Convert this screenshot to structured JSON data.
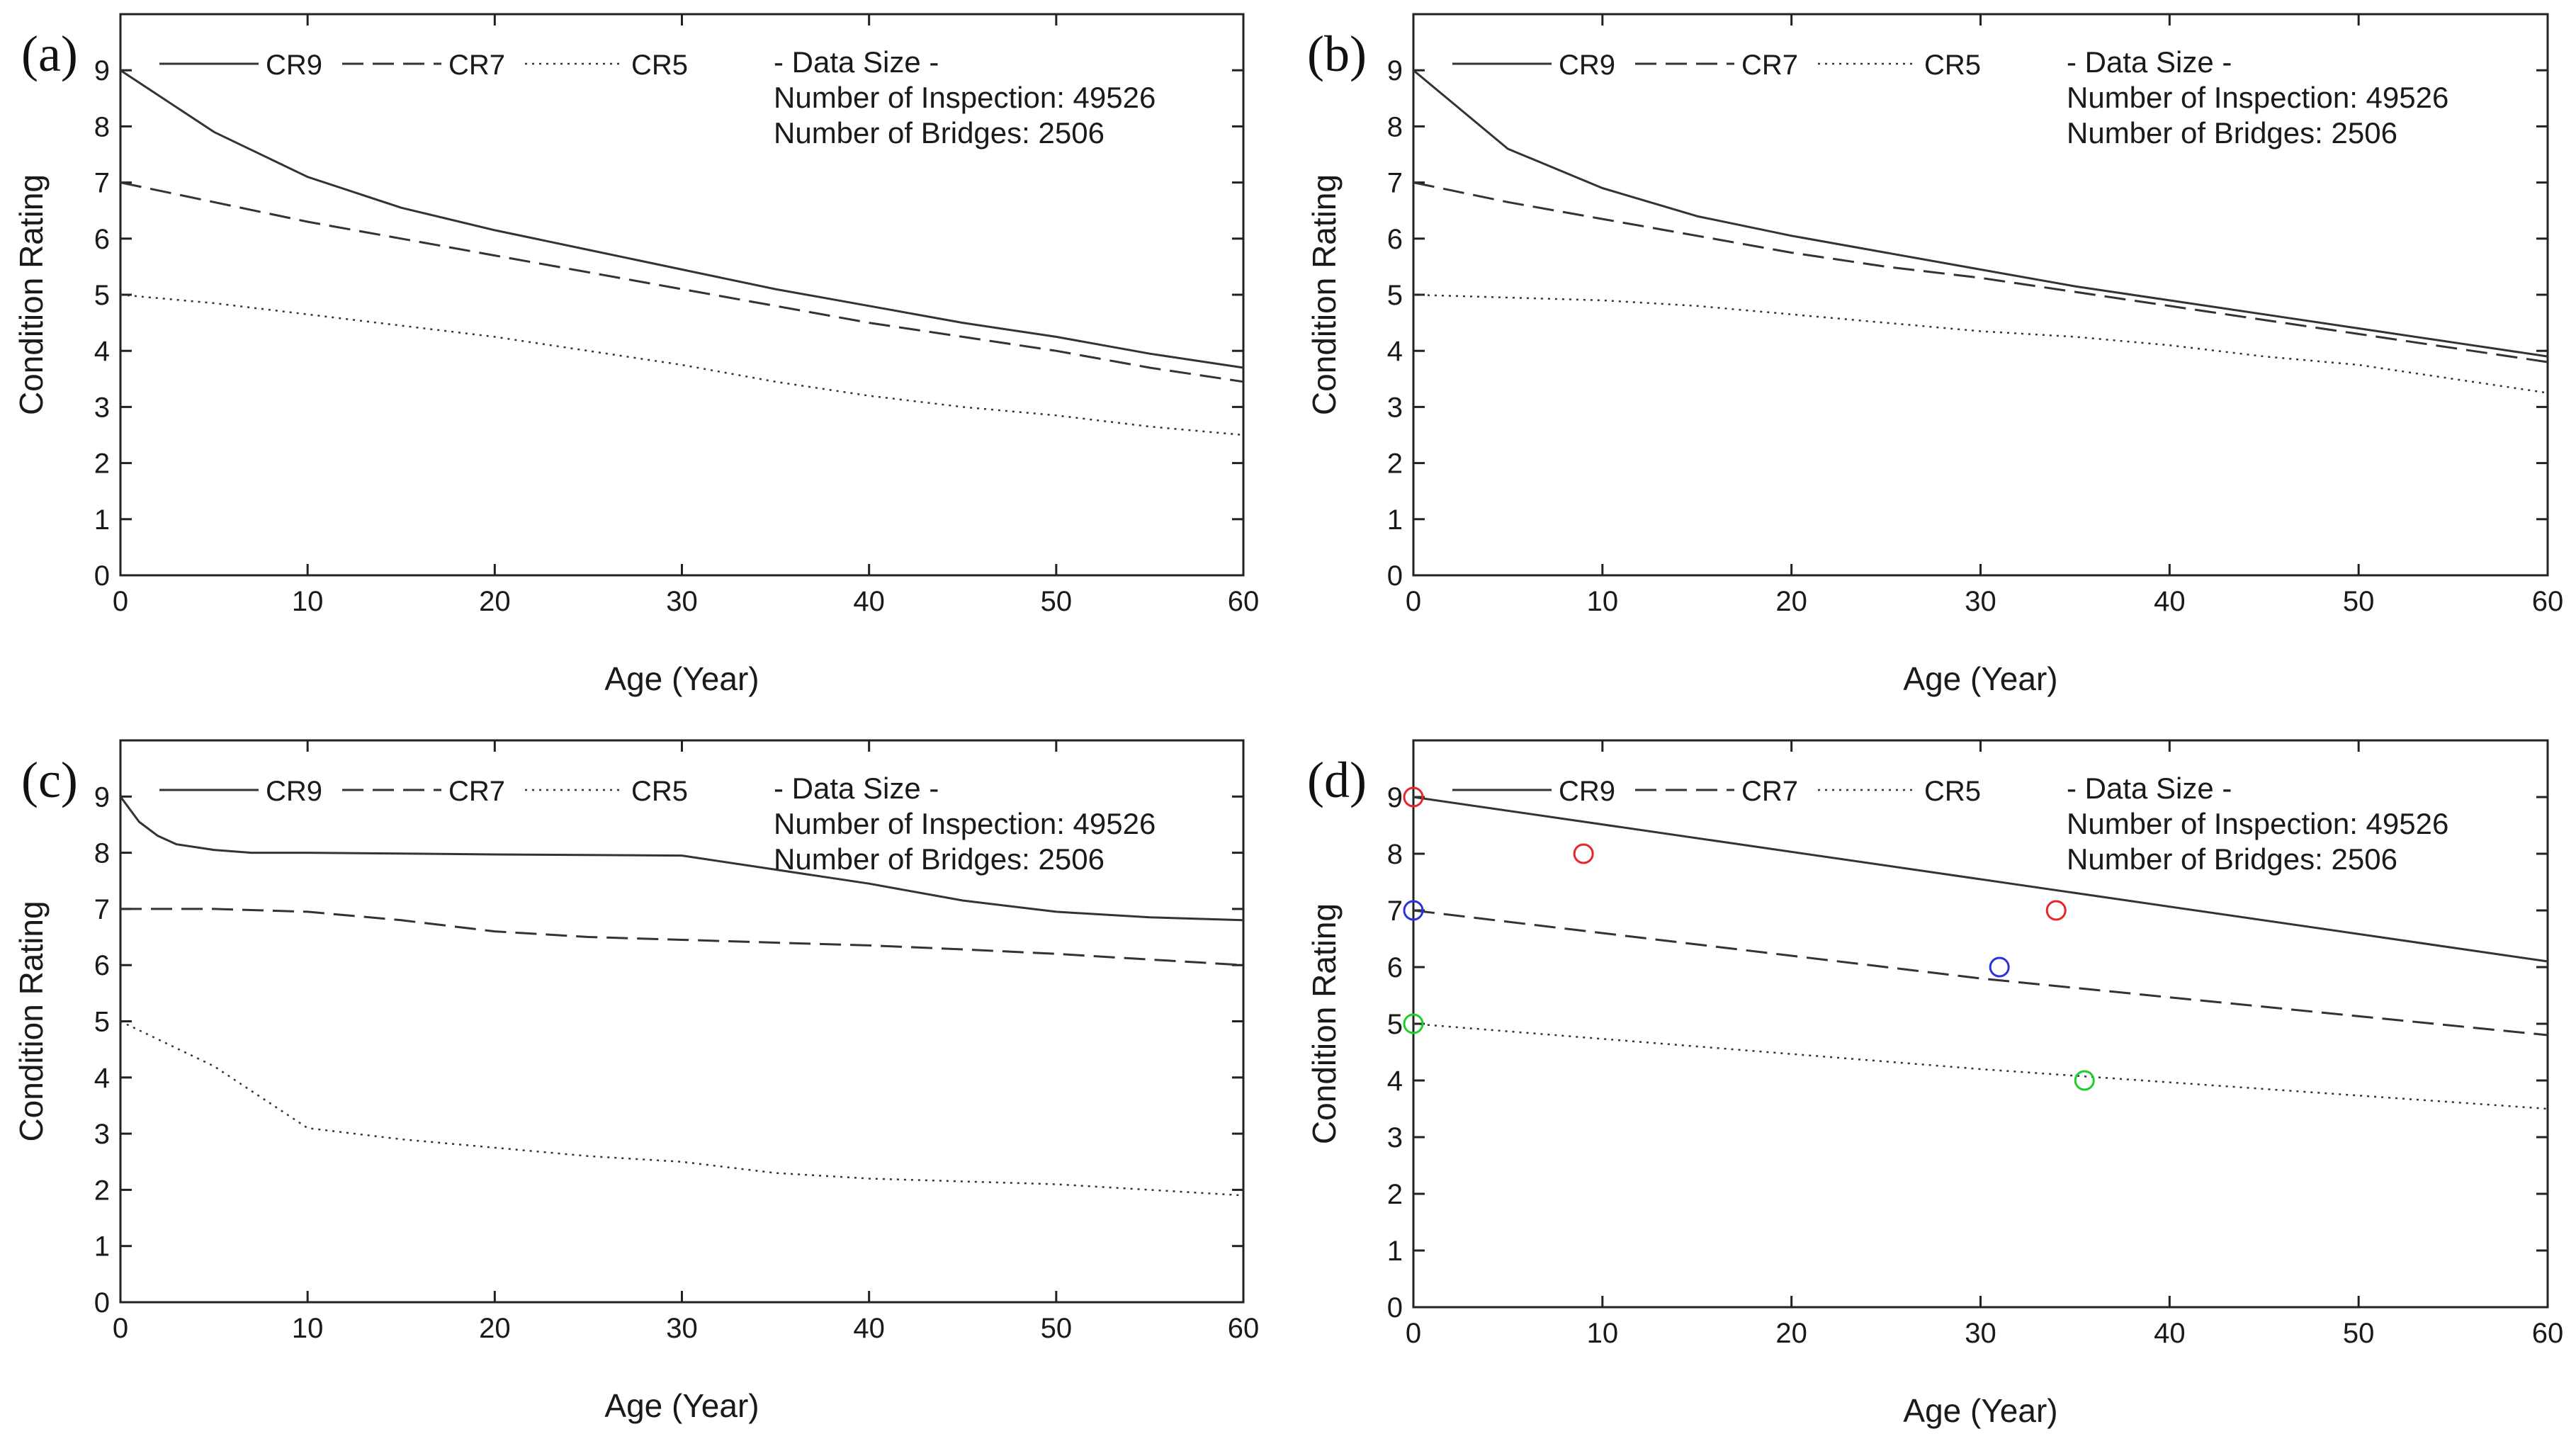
{
  "figure": {
    "background": "#ffffff",
    "axis_color": "#222222",
    "line_color": "#333333"
  },
  "chart_data": [
    {
      "panel": "(a)",
      "type": "line",
      "xlabel": "Age (Year)",
      "ylabel": "Condition Rating",
      "xlim": [
        0,
        60
      ],
      "ylim": [
        0,
        10
      ],
      "xticks": [
        0,
        10,
        20,
        30,
        40,
        50,
        60
      ],
      "yticks": [
        0,
        1,
        2,
        3,
        4,
        5,
        6,
        7,
        8,
        9
      ],
      "info": [
        "- Data Size -",
        "Number of Inspection: 49526",
        "Number of Bridges: 2506"
      ],
      "series": [
        {
          "name": "CR9",
          "style": "solid",
          "x": [
            0,
            5,
            10,
            15,
            20,
            25,
            30,
            35,
            40,
            45,
            50,
            55,
            60
          ],
          "y": [
            9.0,
            7.9,
            7.1,
            6.55,
            6.15,
            5.8,
            5.45,
            5.1,
            4.8,
            4.5,
            4.25,
            3.95,
            3.7
          ]
        },
        {
          "name": "CR7",
          "style": "dashed",
          "x": [
            0,
            5,
            10,
            15,
            20,
            25,
            30,
            35,
            40,
            45,
            50,
            55,
            60
          ],
          "y": [
            7.0,
            6.65,
            6.3,
            6.0,
            5.7,
            5.4,
            5.1,
            4.8,
            4.5,
            4.25,
            4.0,
            3.7,
            3.45
          ]
        },
        {
          "name": "CR5",
          "style": "dotted",
          "x": [
            0,
            5,
            10,
            15,
            20,
            25,
            30,
            35,
            40,
            45,
            50,
            55,
            60
          ],
          "y": [
            5.0,
            4.85,
            4.65,
            4.45,
            4.25,
            4.0,
            3.75,
            3.45,
            3.2,
            3.0,
            2.85,
            2.65,
            2.5
          ]
        }
      ],
      "markers": []
    },
    {
      "panel": "(b)",
      "type": "line",
      "xlabel": "Age (Year)",
      "ylabel": "Condition Rating",
      "xlim": [
        0,
        60
      ],
      "ylim": [
        0,
        10
      ],
      "xticks": [
        0,
        10,
        20,
        30,
        40,
        50,
        60
      ],
      "yticks": [
        0,
        1,
        2,
        3,
        4,
        5,
        6,
        7,
        8,
        9
      ],
      "info": [
        "- Data Size -",
        "Number of Inspection: 49526",
        "Number of Bridges: 2506"
      ],
      "series": [
        {
          "name": "CR9",
          "style": "solid",
          "x": [
            0,
            5,
            10,
            15,
            20,
            25,
            30,
            35,
            40,
            45,
            50,
            55,
            60
          ],
          "y": [
            9.0,
            7.6,
            6.9,
            6.4,
            6.05,
            5.75,
            5.45,
            5.15,
            4.9,
            4.65,
            4.4,
            4.15,
            3.9
          ]
        },
        {
          "name": "CR7",
          "style": "dashed",
          "x": [
            0,
            5,
            10,
            15,
            20,
            25,
            30,
            35,
            40,
            45,
            50,
            55,
            60
          ],
          "y": [
            7.0,
            6.65,
            6.35,
            6.05,
            5.75,
            5.5,
            5.3,
            5.05,
            4.8,
            4.55,
            4.3,
            4.05,
            3.8
          ]
        },
        {
          "name": "CR5",
          "style": "dotted",
          "x": [
            0,
            5,
            10,
            15,
            20,
            25,
            30,
            35,
            40,
            45,
            50,
            55,
            60
          ],
          "y": [
            5.0,
            4.95,
            4.9,
            4.8,
            4.65,
            4.5,
            4.35,
            4.25,
            4.1,
            3.9,
            3.75,
            3.5,
            3.25
          ]
        }
      ],
      "markers": []
    },
    {
      "panel": "(c)",
      "type": "line",
      "xlabel": "Age (Year)",
      "ylabel": "Condition Rating",
      "xlim": [
        0,
        60
      ],
      "ylim": [
        0,
        10
      ],
      "xticks": [
        0,
        10,
        20,
        30,
        40,
        50,
        60
      ],
      "yticks": [
        0,
        1,
        2,
        3,
        4,
        5,
        6,
        7,
        8,
        9
      ],
      "info": [
        "- Data Size -",
        "Number of Inspection: 49526",
        "Number of Bridges: 2506"
      ],
      "series": [
        {
          "name": "CR9",
          "style": "solid",
          "x": [
            0,
            1,
            2,
            3,
            5,
            7,
            10,
            20,
            30,
            35,
            40,
            45,
            50,
            55,
            60
          ],
          "y": [
            9.0,
            8.55,
            8.3,
            8.15,
            8.05,
            8.0,
            8.0,
            7.97,
            7.95,
            7.7,
            7.45,
            7.15,
            6.95,
            6.85,
            6.8
          ]
        },
        {
          "name": "CR7",
          "style": "dashed",
          "x": [
            0,
            5,
            10,
            15,
            20,
            25,
            30,
            35,
            40,
            45,
            50,
            55,
            60
          ],
          "y": [
            7.0,
            7.0,
            6.95,
            6.8,
            6.6,
            6.5,
            6.45,
            6.4,
            6.35,
            6.28,
            6.2,
            6.1,
            6.0
          ]
        },
        {
          "name": "CR5",
          "style": "dotted",
          "x": [
            0,
            5,
            10,
            15,
            20,
            25,
            30,
            35,
            40,
            45,
            50,
            55,
            60
          ],
          "y": [
            5.0,
            4.2,
            3.1,
            2.9,
            2.75,
            2.6,
            2.5,
            2.3,
            2.2,
            2.15,
            2.1,
            2.0,
            1.9
          ]
        }
      ],
      "markers": []
    },
    {
      "panel": "(d)",
      "type": "line",
      "xlabel": "Age (Year)",
      "ylabel": "Condition Rating",
      "xlim": [
        0,
        60
      ],
      "ylim": [
        0,
        10
      ],
      "xticks": [
        0,
        10,
        20,
        30,
        40,
        50,
        60
      ],
      "yticks": [
        0,
        1,
        2,
        3,
        4,
        5,
        6,
        7,
        8,
        9
      ],
      "info": [
        "- Data Size -",
        "Number of Inspection: 49526",
        "Number of Bridges: 2506"
      ],
      "series": [
        {
          "name": "CR9",
          "style": "solid",
          "x": [
            0,
            60
          ],
          "y": [
            9.0,
            6.1
          ]
        },
        {
          "name": "CR7",
          "style": "dashed",
          "x": [
            0,
            30,
            60
          ],
          "y": [
            7.0,
            5.8,
            4.8
          ]
        },
        {
          "name": "CR5",
          "style": "dotted",
          "x": [
            0,
            30,
            60
          ],
          "y": [
            5.0,
            4.2,
            3.5
          ]
        }
      ],
      "markers": [
        {
          "x": 0,
          "y": 9,
          "color": "#e8252a"
        },
        {
          "x": 9,
          "y": 8,
          "color": "#e8252a"
        },
        {
          "x": 34,
          "y": 7,
          "color": "#e8252a"
        },
        {
          "x": 0,
          "y": 7,
          "color": "#2a32d8"
        },
        {
          "x": 31,
          "y": 6,
          "color": "#2a32d8"
        },
        {
          "x": 0,
          "y": 5,
          "color": "#1fce2e"
        },
        {
          "x": 35.5,
          "y": 4,
          "color": "#1fce2e"
        }
      ]
    }
  ]
}
